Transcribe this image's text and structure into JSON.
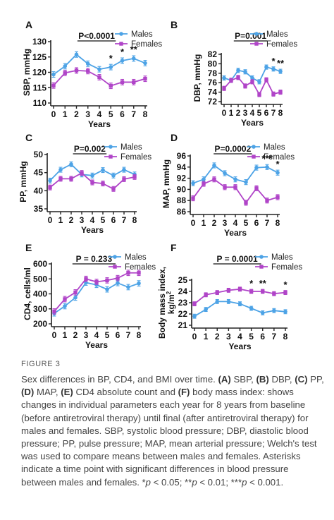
{
  "figure_label": "FIGURE 3",
  "caption": {
    "lead": "Sex differences in BP, CD4, and BMI over time. ",
    "parts": [
      {
        "b": "(A)"
      },
      {
        "t": " SBP, "
      },
      {
        "b": "(B)"
      },
      {
        "t": " DBP, "
      },
      {
        "b": "(C)"
      },
      {
        "t": " PP, "
      },
      {
        "b": "(D)"
      },
      {
        "t": " MAP, "
      },
      {
        "b": "(E)"
      },
      {
        "t": " CD4 absolute count and "
      },
      {
        "b": "(F)"
      },
      {
        "t": " body mass index: shows changes in individual parameters each year for 8 years from baseline (before antiretroviral therapy) until final (after antiretroviral therapy) for males and females. SBP, systolic blood pressure; DBP, diastolic blood pressure; PP, pulse pressure; MAP, mean arterial pressure; Welch's test was used to compare means between males and females. Asterisks indicate a time point with significant differences in blood pressure between males and females. *"
      },
      {
        "i": "p"
      },
      {
        "t": " < 0.05; **"
      },
      {
        "i": "p"
      },
      {
        "t": " < 0.01; ***"
      },
      {
        "i": "p"
      },
      {
        "t": " < 0.001."
      }
    ]
  },
  "colors": {
    "males": "#4da3e6",
    "females": "#b044c8",
    "axis": "#222222"
  },
  "chart_data": [
    {
      "panel": "A",
      "type": "line",
      "xlabel": "Years",
      "ylabel": "SBP, mmHg",
      "pvalue": "P<0.0001",
      "x": [
        0,
        1,
        2,
        3,
        4,
        5,
        6,
        7,
        8
      ],
      "xlim": [
        0,
        8
      ],
      "ylim": [
        110,
        130
      ],
      "yticks": [
        110,
        115,
        120,
        125,
        130
      ],
      "series": [
        {
          "name": "Males",
          "values": [
            119.3,
            122,
            125.8,
            122.8,
            121,
            121.7,
            123.8,
            124.5,
            123
          ]
        },
        {
          "name": "Females",
          "values": [
            115.7,
            119.8,
            120.6,
            120.4,
            118.4,
            115.6,
            116.8,
            116.8,
            117.9
          ]
        }
      ],
      "stars": [
        {
          "x": 5,
          "text": "*"
        },
        {
          "x": 6,
          "text": "*"
        },
        {
          "x": 7,
          "text": "**"
        }
      ]
    },
    {
      "panel": "B",
      "type": "line",
      "xlabel": "Years",
      "ylabel": "DBP, mmHg",
      "pvalue": "P=0.001",
      "x": [
        0,
        1,
        2,
        3,
        4,
        5,
        6,
        7,
        8
      ],
      "xlim": [
        0,
        8
      ],
      "ylim": [
        72,
        82
      ],
      "yticks": [
        72,
        74,
        76,
        78,
        80,
        82
      ],
      "series": [
        {
          "name": "Males",
          "values": [
            77,
            76.5,
            78.6,
            78.3,
            77,
            76.2,
            79.3,
            78.9,
            78.4
          ]
        },
        {
          "name": "Females",
          "values": [
            74.8,
            76.5,
            77.1,
            75.3,
            76.2,
            73.5,
            76.6,
            73.6,
            74
          ]
        }
      ],
      "stars": [
        {
          "x": 7,
          "text": "*"
        },
        {
          "x": 8,
          "text": "**"
        }
      ]
    },
    {
      "panel": "C",
      "type": "line",
      "xlabel": "Years",
      "ylabel": "PP, mmHg",
      "pvalue": "P=0.002",
      "x": [
        0,
        1,
        2,
        3,
        4,
        5,
        6,
        7,
        8
      ],
      "xlim": [
        0,
        8
      ],
      "ylim": [
        35,
        50
      ],
      "yticks": [
        35,
        40,
        45,
        50
      ],
      "series": [
        {
          "name": "Males",
          "values": [
            42.8,
            45.8,
            47.3,
            44.5,
            44.2,
            45.7,
            44.2,
            45.8,
            44.5
          ]
        },
        {
          "name": "Females",
          "values": [
            40.9,
            43.3,
            43.3,
            44.9,
            42.3,
            42,
            40.5,
            43.2,
            43.8
          ]
        }
      ],
      "stars": []
    },
    {
      "panel": "D",
      "type": "line",
      "xlabel": "Years",
      "ylabel": "MAP, mmHg",
      "pvalue": "P=0.0002",
      "x": [
        0,
        1,
        2,
        3,
        4,
        5,
        6,
        7,
        8
      ],
      "xlim": [
        0,
        8
      ],
      "ylim": [
        86,
        96
      ],
      "yticks": [
        86,
        88,
        90,
        92,
        94,
        96
      ],
      "series": [
        {
          "name": "Males",
          "values": [
            91.1,
            91.8,
            94.3,
            92.9,
            91.8,
            91.3,
            93.9,
            94,
            93
          ]
        },
        {
          "name": "Females",
          "values": [
            88.4,
            91,
            91.8,
            90.4,
            90.4,
            87.6,
            90.2,
            88,
            88.6
          ]
        }
      ],
      "stars": [
        {
          "x": 7,
          "text": "***"
        },
        {
          "x": 8,
          "text": "*"
        }
      ]
    },
    {
      "panel": "E",
      "type": "line",
      "xlabel": "Years",
      "ylabel": "CD4, cells/ml",
      "pvalue": "P = 0.233",
      "x": [
        0,
        1,
        2,
        3,
        4,
        5,
        6,
        7,
        8
      ],
      "xlim": [
        0,
        8
      ],
      "ylim": [
        200,
        600
      ],
      "yticks": [
        200,
        300,
        400,
        500,
        600
      ],
      "series": [
        {
          "name": "Males",
          "values": [
            270,
            318,
            375,
            475,
            460,
            430,
            472,
            445,
            470
          ]
        },
        {
          "name": "Females",
          "values": [
            283,
            365,
            410,
            500,
            480,
            490,
            505,
            540,
            540
          ]
        }
      ],
      "stars": []
    },
    {
      "panel": "F",
      "type": "line",
      "xlabel": "Years",
      "ylabel": "Body mass index, kg/m2",
      "ylabel_main": "Body mass index,",
      "ylabel_unit": "kg/m",
      "ylabel_sup": "2",
      "pvalue": "P = 0.0001",
      "x": [
        0,
        1,
        2,
        3,
        4,
        5,
        6,
        7,
        8
      ],
      "xlim": [
        0,
        8
      ],
      "ylim": [
        21,
        25
      ],
      "yticks": [
        21,
        22,
        23,
        24,
        25
      ],
      "series": [
        {
          "name": "Males",
          "values": [
            21.8,
            22.4,
            23.1,
            23.1,
            22.9,
            22.5,
            22.1,
            22.3,
            22.2
          ]
        },
        {
          "name": "Females",
          "values": [
            22.9,
            23.7,
            23.9,
            24.1,
            24.2,
            24,
            24,
            23.8,
            23.9
          ]
        }
      ],
      "stars": [
        {
          "x": 5,
          "text": "*"
        },
        {
          "x": 6,
          "text": "**"
        },
        {
          "x": 8,
          "text": "*"
        }
      ]
    }
  ]
}
